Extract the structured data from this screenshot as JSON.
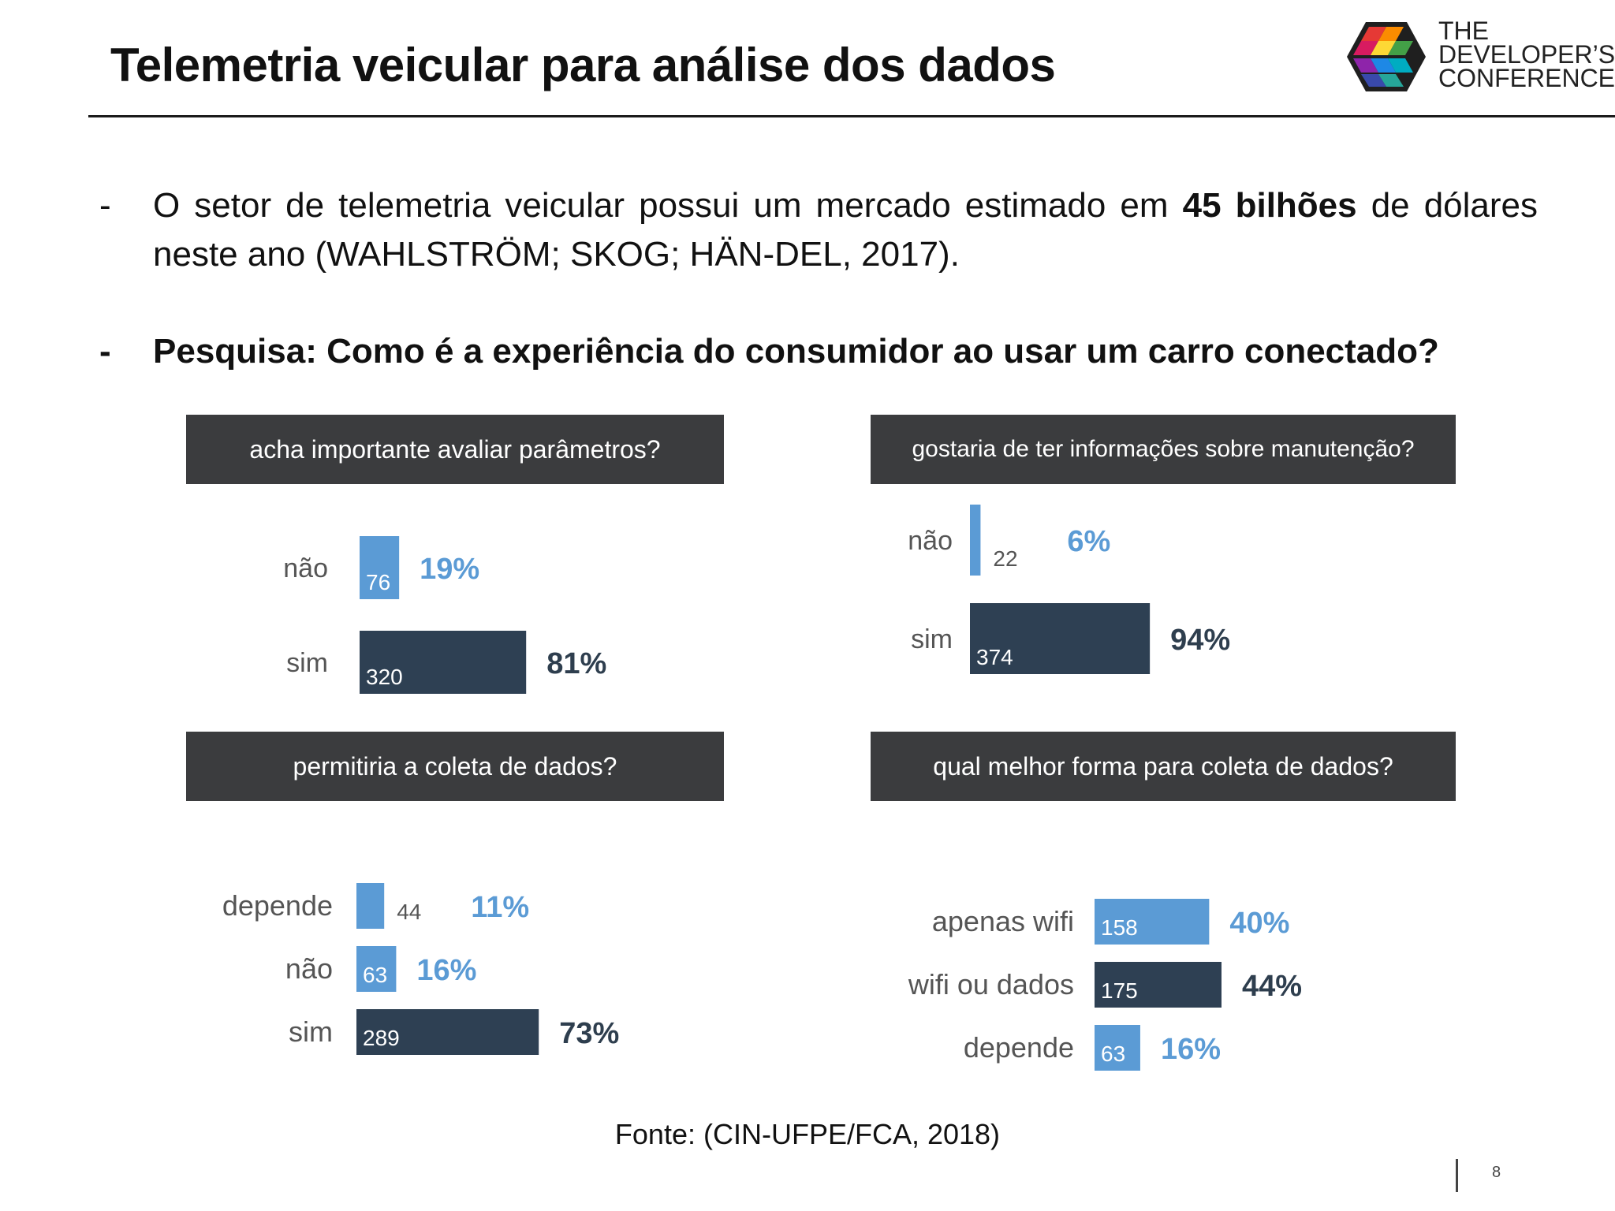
{
  "slide": {
    "title": "Telemetria veicular para análise dos dados",
    "logo": {
      "line1": "THE",
      "line2": "DEVELOPER’S",
      "line3": "CONFERENCE",
      "icon": "tdc-cube-logo-icon"
    },
    "bullet_marker_1": "-",
    "bullet_1_pre": "O setor de telemetria veicular possui um mercado estimado em ",
    "bullet_1_bold": "45 bilhões",
    "bullet_1_post": " de dólares neste ano (WAHLSTRÖM; SKOG; HÄN-DEL, 2017).",
    "bullet_marker_2": "-",
    "bullet_2": "Pesquisa: Como é a experiência do consumidor ao usar um carro conectado?",
    "source": "Fonte: (CIN-UFPE/FCA, 2018)",
    "page_number": "8"
  },
  "colors": {
    "light_blue": "#5b9bd5",
    "dark_navy": "#2e4053",
    "header_bg": "#3b3c3e",
    "label_gray": "#555555"
  },
  "chart_data": [
    {
      "type": "bar",
      "title": "acha importante avaliar parâmetros?",
      "categories": [
        "não",
        "sim"
      ],
      "values": [
        76,
        320
      ],
      "percent_labels": [
        "19%",
        "81%"
      ],
      "colors": [
        "#5b9bd5",
        "#2e4053"
      ]
    },
    {
      "type": "bar",
      "title": "gostaria de ter informações sobre manutenção?",
      "categories": [
        "não",
        "sim"
      ],
      "values": [
        22,
        374
      ],
      "percent_labels": [
        "6%",
        "94%"
      ],
      "colors": [
        "#5b9bd5",
        "#2e4053"
      ]
    },
    {
      "type": "bar",
      "title": "permitiria a coleta de dados?",
      "categories": [
        "depende",
        "não",
        "sim"
      ],
      "values": [
        44,
        63,
        289
      ],
      "percent_labels": [
        "11%",
        "16%",
        "73%"
      ],
      "colors": [
        "#5b9bd5",
        "#5b9bd5",
        "#2e4053"
      ]
    },
    {
      "type": "bar",
      "title": "qual melhor forma para coleta de dados?",
      "categories": [
        "apenas wifi",
        "wifi ou dados",
        "depende"
      ],
      "values": [
        158,
        175,
        63
      ],
      "percent_labels": [
        "40%",
        "44%",
        "16%"
      ],
      "colors": [
        "#5b9bd5",
        "#2e4053",
        "#5b9bd5"
      ]
    }
  ]
}
